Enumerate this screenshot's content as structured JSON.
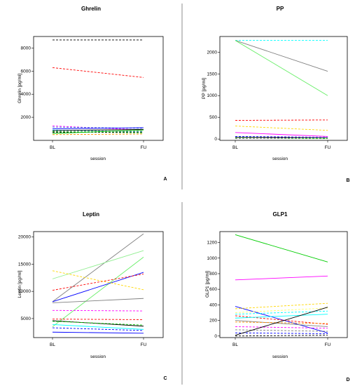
{
  "chart_data": [
    {
      "type": "line",
      "letter": "A",
      "title": "Ghrelin",
      "xlabel": "session",
      "ylabel": "Ghrelin [pg/ml]",
      "categories": [
        "BL",
        "FU"
      ],
      "ylim": [
        0,
        9000
      ],
      "yticks": [
        "2000",
        "4000",
        "6000",
        "8000"
      ],
      "series": [
        {
          "values": [
            8700,
            8700
          ],
          "color": "#000000",
          "dash": true
        },
        {
          "values": [
            6300,
            5450
          ],
          "color": "#ff0000",
          "dash": true
        },
        {
          "values": [
            1250,
            900
          ],
          "color": "#ff00ff",
          "dash": true
        },
        {
          "values": [
            1150,
            1050
          ],
          "color": "#4169e1",
          "dash": true
        },
        {
          "values": [
            1000,
            1100
          ],
          "color": "#0000ff",
          "dash": false
        },
        {
          "values": [
            900,
            750
          ],
          "color": "#00ffff",
          "dash": true
        },
        {
          "values": [
            850,
            950
          ],
          "color": "#000000",
          "dash": false
        },
        {
          "values": [
            800,
            800
          ],
          "color": "#808080",
          "dash": true
        },
        {
          "values": [
            750,
            650
          ],
          "color": "#00cd00",
          "dash": true
        },
        {
          "values": [
            700,
            720
          ],
          "color": "#000000",
          "dash": true
        },
        {
          "values": [
            600,
            900
          ],
          "color": "#00cd00",
          "dash": false
        },
        {
          "values": [
            500,
            550
          ],
          "color": "#ff8c00",
          "dash": true
        }
      ]
    },
    {
      "type": "line",
      "letter": "B",
      "title": "PP",
      "xlabel": "session",
      "ylabel": "PP [pg/ml]",
      "categories": [
        "BL",
        "FU"
      ],
      "ylim": [
        -30,
        2360
      ],
      "yticks": [
        "0",
        "500",
        "1000",
        "1500",
        "2000"
      ],
      "series": [
        {
          "values": [
            2270,
            2270
          ],
          "color": "#00ffff",
          "dash": true
        },
        {
          "values": [
            2270,
            1560
          ],
          "color": "#808080",
          "dash": false
        },
        {
          "values": [
            2270,
            1000
          ],
          "color": "#66ee66",
          "dash": false
        },
        {
          "values": [
            430,
            440
          ],
          "color": "#ff0000",
          "dash": true
        },
        {
          "values": [
            300,
            200
          ],
          "color": "#ffd700",
          "dash": true
        },
        {
          "values": [
            150,
            60
          ],
          "color": "#ff00ff",
          "dash": false
        },
        {
          "values": [
            60,
            40
          ],
          "color": "#0000ff",
          "dash": true
        },
        {
          "values": [
            40,
            30
          ],
          "color": "#000000",
          "dash": false
        },
        {
          "values": [
            20,
            10
          ],
          "color": "#00cd00",
          "dash": true
        },
        {
          "values": [
            10,
            30
          ],
          "color": "#808080",
          "dash": true
        }
      ]
    },
    {
      "type": "line",
      "letter": "C",
      "title": "Leptin",
      "xlabel": "session",
      "ylabel": "Leptin [pg/ml]",
      "categories": [
        "BL",
        "FU"
      ],
      "ylim": [
        1500,
        21000
      ],
      "yticks": [
        "5000",
        "10000",
        "15000",
        "20000"
      ],
      "series": [
        {
          "values": [
            8100,
            20600
          ],
          "color": "#808080",
          "dash": false
        },
        {
          "values": [
            12300,
            17500
          ],
          "color": "#90ee90",
          "dash": false
        },
        {
          "values": [
            3500,
            16300
          ],
          "color": "#66ee66",
          "dash": false
        },
        {
          "values": [
            8100,
            13500
          ],
          "color": "#0000ff",
          "dash": false
        },
        {
          "values": [
            10200,
            13200
          ],
          "color": "#ff0000",
          "dash": true
        },
        {
          "values": [
            13800,
            10300
          ],
          "color": "#ffd700",
          "dash": true
        },
        {
          "values": [
            7900,
            8700
          ],
          "color": "#808080",
          "dash": false
        },
        {
          "values": [
            6500,
            6400
          ],
          "color": "#ff00ff",
          "dash": true
        },
        {
          "values": [
            4900,
            4800
          ],
          "color": "#ff0000",
          "dash": true
        },
        {
          "values": [
            4600,
            3600
          ],
          "color": "#000000",
          "dash": false
        },
        {
          "values": [
            4500,
            3800
          ],
          "color": "#00cd00",
          "dash": true
        },
        {
          "values": [
            3900,
            3000
          ],
          "color": "#00ffff",
          "dash": false
        },
        {
          "values": [
            3300,
            2800
          ],
          "color": "#0000ff",
          "dash": true
        },
        {
          "values": [
            2500,
            2300
          ],
          "color": "#0000ff",
          "dash": false
        }
      ]
    },
    {
      "type": "line",
      "letter": "D",
      "title": "GLP1",
      "xlabel": "session",
      "ylabel": "GLP1 [pg/ml]",
      "categories": [
        "BL",
        "FU"
      ],
      "ylim": [
        -20,
        1340
      ],
      "yticks": [
        "0",
        "200",
        "400",
        "600",
        "800",
        "1000",
        "1200"
      ],
      "series": [
        {
          "values": [
            1300,
            950
          ],
          "color": "#00cd00",
          "dash": false
        },
        {
          "values": [
            720,
            770
          ],
          "color": "#ff00ff",
          "dash": false
        },
        {
          "values": [
            380,
            40
          ],
          "color": "#0000ff",
          "dash": false
        },
        {
          "values": [
            350,
            420
          ],
          "color": "#ffd700",
          "dash": true
        },
        {
          "values": [
            300,
            360
          ],
          "color": "#ffff66",
          "dash": true
        },
        {
          "values": [
            280,
            320
          ],
          "color": "#00ffff",
          "dash": true
        },
        {
          "values": [
            260,
            150
          ],
          "color": "#ff0000",
          "dash": true
        },
        {
          "values": [
            230,
            280
          ],
          "color": "#00ffff",
          "dash": false
        },
        {
          "values": [
            200,
            120
          ],
          "color": "#808080",
          "dash": false
        },
        {
          "values": [
            180,
            160
          ],
          "color": "#ff8c00",
          "dash": true
        },
        {
          "values": [
            120,
            100
          ],
          "color": "#ff00ff",
          "dash": true
        },
        {
          "values": [
            80,
            60
          ],
          "color": "#808080",
          "dash": true
        },
        {
          "values": [
            40,
            30
          ],
          "color": "#0000ff",
          "dash": true
        },
        {
          "values": [
            10,
            370
          ],
          "color": "#000000",
          "dash": false
        },
        {
          "values": [
            0,
            10
          ],
          "color": "#000000",
          "dash": true
        }
      ]
    }
  ]
}
